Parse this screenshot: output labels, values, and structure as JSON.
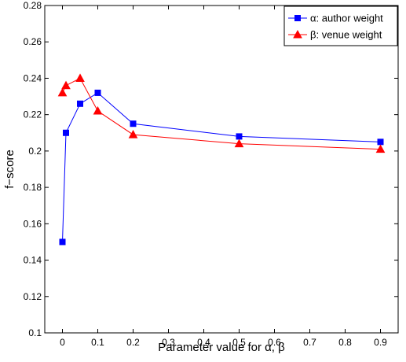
{
  "chart_data": {
    "type": "line",
    "title": "",
    "xlabel": "Parameter value for α, β",
    "ylabel": "f−score",
    "xlim": [
      -0.05,
      0.95
    ],
    "ylim": [
      0.1,
      0.28
    ],
    "xticks": [
      0,
      0.1,
      0.2,
      0.3,
      0.4,
      0.5,
      0.6,
      0.7,
      0.8,
      0.9
    ],
    "xtick_labels": [
      "0",
      "0.1",
      "0.2",
      "0.3",
      "0.4",
      "0.5",
      "0.6",
      "0.7",
      "0.8",
      "0.9"
    ],
    "yticks": [
      0.1,
      0.12,
      0.14,
      0.16,
      0.18,
      0.2,
      0.22,
      0.24,
      0.26,
      0.28
    ],
    "ytick_labels": [
      "0.1",
      "0.12",
      "0.14",
      "0.16",
      "0.18",
      "0.2",
      "0.22",
      "0.24",
      "0.26",
      "0.28"
    ],
    "grid": false,
    "legend_position": "top-right",
    "series": [
      {
        "name": "α: author weight",
        "color": "#0000ff",
        "marker": "square",
        "points": [
          {
            "x": 0,
            "y": 0.15
          },
          {
            "x": 0.01,
            "y": 0.21
          },
          {
            "x": 0.05,
            "y": 0.226
          },
          {
            "x": 0.1,
            "y": 0.232
          },
          {
            "x": 0.2,
            "y": 0.215
          },
          {
            "x": 0.5,
            "y": 0.208
          },
          {
            "x": 0.9,
            "y": 0.205
          }
        ]
      },
      {
        "name": "β: venue weight",
        "color": "#ff0000",
        "marker": "triangle",
        "points": [
          {
            "x": 0,
            "y": 0.232
          },
          {
            "x": 0.01,
            "y": 0.236
          },
          {
            "x": 0.05,
            "y": 0.24
          },
          {
            "x": 0.1,
            "y": 0.222
          },
          {
            "x": 0.2,
            "y": 0.209
          },
          {
            "x": 0.5,
            "y": 0.204
          },
          {
            "x": 0.9,
            "y": 0.201
          }
        ]
      }
    ]
  }
}
